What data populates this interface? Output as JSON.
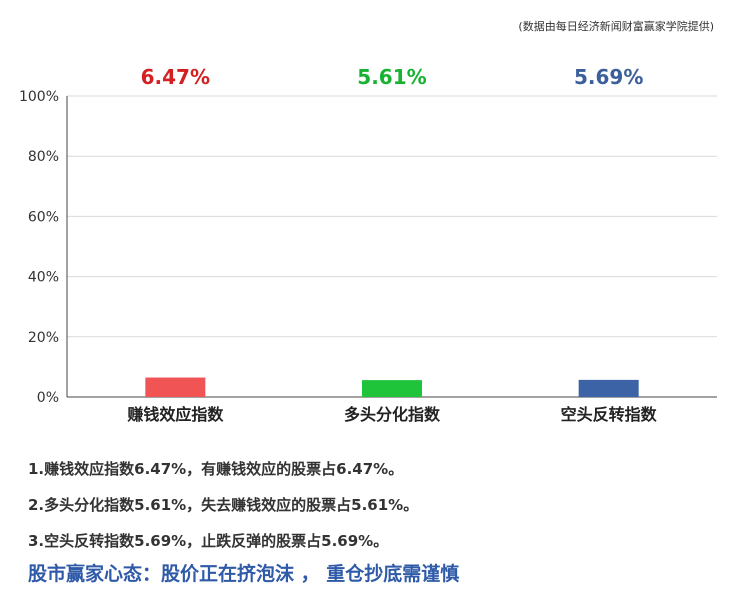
{
  "source_note": "(数据由每日经济新闻财富赢家学院提供)",
  "chart_data": {
    "type": "bar",
    "categories": [
      "赚钱效应指数",
      "多头分化指数",
      "空头反转指数"
    ],
    "values": [
      6.47,
      5.61,
      5.69
    ],
    "value_labels": [
      "6.47%",
      "5.61%",
      "5.69%"
    ],
    "colors": [
      "#f05454",
      "#1fc43a",
      "#3b63a6"
    ],
    "label_colors": [
      "#d42020",
      "#17b330",
      "#3b5f9a"
    ],
    "yticks": [
      "0%",
      "20%",
      "40%",
      "60%",
      "80%",
      "100%"
    ],
    "ylim": [
      0,
      100
    ],
    "grid": true
  },
  "notes": [
    "1.赚钱效应指数6.47%，有赚钱效应的股票占6.47%。",
    "2.多头分化指数5.61%，失去赚钱效应的股票占5.61%。",
    "3.空头反转指数5.69%，止跌反弹的股票占5.69%。"
  ],
  "headline": "股市赢家心态：股价正在挤泡沫 ， 重仓抄底需谨慎"
}
